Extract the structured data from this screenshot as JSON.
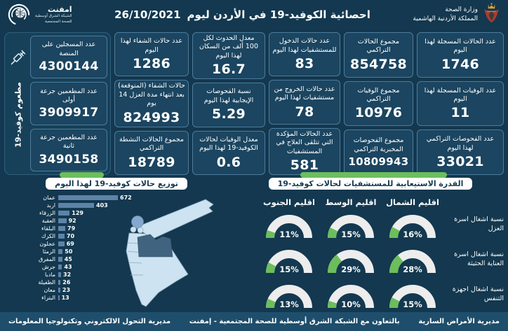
{
  "colors": {
    "background": "#13384F",
    "card": "#1B4560",
    "card_border": "#4E7C9D",
    "green": "#6CBE5C",
    "bar": "#5D83A8",
    "map_light": "#CDE3F2",
    "map_amman": "#40647F",
    "map_irbid": "#84A9CE",
    "gauge_track": "#EDEDED",
    "footer_bg": "#1E4E6B"
  },
  "header": {
    "ministry": {
      "line1": "وزارة الصحة",
      "line2": "المملكة الأردنية الهاشمية"
    },
    "title": "احصائية الكوفيد-19 في الأردن ليوم",
    "date": "26/10/2021",
    "emphnet": {
      "name": "امفنت",
      "sub1": "الشبكة الشرق أوسطية",
      "sub2": "للصحة المجتمعية"
    }
  },
  "vaccination": {
    "side_label": "مطعوم كوفيد-19",
    "cards": [
      {
        "label": "عدد المسجلين على المنصة",
        "value": "4300144"
      },
      {
        "label": "عدد المطعمين جرعة أولى",
        "value": "3909917"
      },
      {
        "label": "عدد المطعمين جرعة ثانية",
        "value": "3490158"
      }
    ]
  },
  "stat_columns": [
    {
      "cards": [
        {
          "label": "عدد الحالات المسجلة لهذا اليوم",
          "value": "1746"
        },
        {
          "label": "عدد الوفيات المسجلة لهذا اليوم",
          "value": "11"
        },
        {
          "label": "عدد الفحوصات التراكمي لهذا اليوم",
          "value": "33021"
        }
      ]
    },
    {
      "cards": [
        {
          "label": "مجموع الحالات التراكمي",
          "value": "854758"
        },
        {
          "label": "مجموع الوفيات التراكمي",
          "value": "10976"
        },
        {
          "label": "مجموع الفحوصات المخبرية التراكمي",
          "value": "10809943"
        }
      ]
    },
    {
      "cards": [
        {
          "label": "عدد حالات الدخول للمستشفيات لهذا اليوم",
          "value": "83"
        },
        {
          "label": "عدد حالات الخروج من مستشفيات لهذا اليوم",
          "value": "78"
        },
        {
          "label": "عدد الحالات المؤكدة التي تتلقى العلاج في المستشفيات",
          "value": "581"
        }
      ]
    },
    {
      "cards": [
        {
          "label": "معدل الحدوث لكل 100 ألف من السكان لهذا اليوم",
          "value": "16.7"
        },
        {
          "label": "نسبة الفحوصات الإيجابية لهذا اليوم",
          "value": "5.29"
        },
        {
          "label": "معدل الوفيات لحالات الكوفيد-19 لهذا اليوم",
          "value": "0.6"
        }
      ]
    },
    {
      "cards": [
        {
          "label": "عدد حالات الشفاء لهذا اليوم",
          "value": "1286"
        },
        {
          "label": "حالات الشفاء (المتوقعة) بعد انتهاء مدة العزل 14 يوم",
          "value": "824993"
        },
        {
          "label": "مجموع الحالات النشطة التراكمي",
          "value": "18789"
        }
      ]
    }
  ],
  "chart_data": [
    {
      "type": "bar",
      "orientation": "horizontal",
      "title": "توزيع حالات كوفيد-19 لهذا اليوم",
      "categories": [
        "عمان",
        "اربد",
        "الزرقاء",
        "العقبة",
        "البلقاء",
        "الكرك",
        "عجلون",
        "الرمثا",
        "المفرق",
        "جرش",
        "مادبا",
        "الطفيلة",
        "معان",
        "البتراء"
      ],
      "values": [
        672,
        403,
        129,
        92,
        79,
        70,
        69,
        50,
        45,
        43,
        32,
        26,
        23,
        13
      ],
      "xlim": [
        0,
        700
      ],
      "bar_color": "#5D83A8"
    },
    {
      "type": "gauge-grid",
      "title": "القدرة الاستيعابية للمستشفيات لحالات كوفيد-19",
      "regions": [
        "اقليم الشمال",
        "اقليم الوسط",
        "اقليم الجنوب"
      ],
      "rows": [
        {
          "label": "نسبة اشغال اسرة العزل",
          "values_pct": [
            16,
            15,
            11
          ]
        },
        {
          "label": "نسبة اشغال اسرة العناية الحثيثة",
          "values_pct": [
            28,
            29,
            15
          ]
        },
        {
          "label": "نسبة اشغال اجهزة التنفس",
          "values_pct": [
            15,
            10,
            13
          ]
        }
      ],
      "unit": "%",
      "green": "#6CBE5C",
      "track": "#EDEDED"
    }
  ],
  "footer": {
    "right": "مديرية الأمراض السارية",
    "center": "بالتعاون مع الشبكة الشرق أوسطية للصحة المجتمعية - إمفنت",
    "left": "مديرية التحول الالكتروني وتكنولوجيا المعلومات"
  }
}
